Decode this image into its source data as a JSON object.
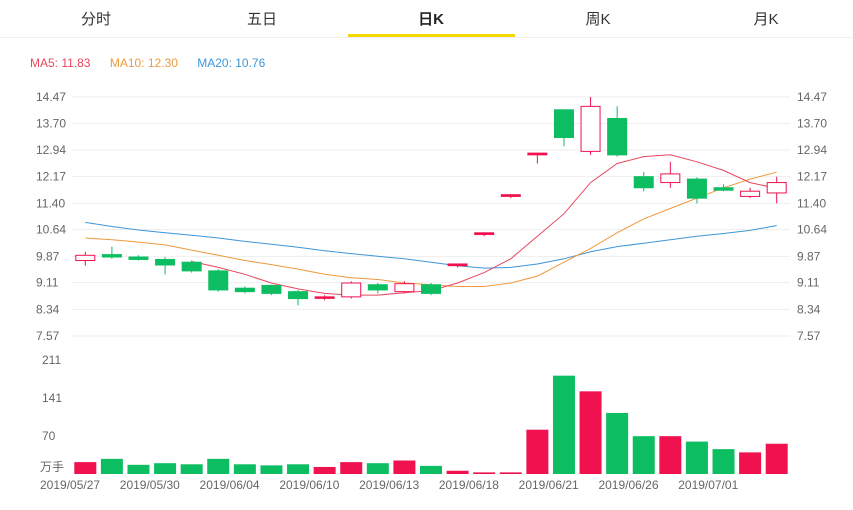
{
  "tabs": [
    {
      "label": "分时"
    },
    {
      "label": "五日"
    },
    {
      "label": "日K"
    },
    {
      "label": "周K"
    },
    {
      "label": "月K"
    }
  ],
  "active_tab": 2,
  "legend": {
    "ma5": "MA5: 11.83",
    "ma10": "MA10: 12.30",
    "ma20": "MA20: 10.76"
  },
  "colors": {
    "up": "#f0124f",
    "down": "#0cbd62",
    "ma5": "#e8475f",
    "ma10": "#ee9a3e",
    "ma20": "#3d96d8",
    "axis_text": "#666666",
    "grid": "#eeeeee",
    "tab_accent": "#f5d800"
  },
  "chart_data": {
    "type": "candlestick",
    "price_axis": {
      "ticks": [
        "14.47",
        "13.70",
        "12.94",
        "12.17",
        "11.40",
        "10.64",
        "9.87",
        "9.11",
        "8.34",
        "7.57"
      ],
      "range": [
        7.57,
        14.47
      ]
    },
    "volume_axis": {
      "ticks": [
        "211",
        "141",
        "70"
      ],
      "unit_label": "万手",
      "range": [
        0,
        211
      ]
    },
    "x_labels": [
      "2019/05/27",
      "2019/05/30",
      "2019/06/04",
      "2019/06/10",
      "2019/06/13",
      "2019/06/18",
      "2019/06/21",
      "2019/06/26",
      "2019/07/01"
    ],
    "x_label_index": [
      0,
      3,
      6,
      9,
      12,
      15,
      18,
      21,
      24
    ],
    "candles": [
      {
        "o": 9.75,
        "h": 10.0,
        "l": 9.6,
        "c": 9.9
      },
      {
        "o": 9.92,
        "h": 10.15,
        "l": 9.8,
        "c": 9.85
      },
      {
        "o": 9.85,
        "h": 9.9,
        "l": 9.75,
        "c": 9.78
      },
      {
        "o": 9.78,
        "h": 9.85,
        "l": 9.35,
        "c": 9.62
      },
      {
        "o": 9.7,
        "h": 9.75,
        "l": 9.4,
        "c": 9.45
      },
      {
        "o": 9.45,
        "h": 9.5,
        "l": 8.85,
        "c": 8.9
      },
      {
        "o": 8.95,
        "h": 9.0,
        "l": 8.8,
        "c": 8.85
      },
      {
        "o": 9.03,
        "h": 9.05,
        "l": 8.75,
        "c": 8.8
      },
      {
        "o": 8.85,
        "h": 8.9,
        "l": 8.45,
        "c": 8.65
      },
      {
        "o": 8.66,
        "h": 8.75,
        "l": 8.6,
        "c": 8.7
      },
      {
        "o": 8.7,
        "h": 9.15,
        "l": 8.65,
        "c": 9.1
      },
      {
        "o": 9.05,
        "h": 9.1,
        "l": 8.8,
        "c": 8.9
      },
      {
        "o": 8.85,
        "h": 9.15,
        "l": 8.8,
        "c": 9.08
      },
      {
        "o": 9.05,
        "h": 9.1,
        "l": 8.75,
        "c": 8.8
      },
      {
        "o": 9.6,
        "h": 9.65,
        "l": 9.55,
        "c": 9.65
      },
      {
        "o": 10.5,
        "h": 10.55,
        "l": 10.45,
        "c": 10.55
      },
      {
        "o": 11.6,
        "h": 11.65,
        "l": 11.55,
        "c": 11.65
      },
      {
        "o": 12.8,
        "h": 12.85,
        "l": 12.55,
        "c": 12.85
      },
      {
        "o": 14.1,
        "h": 14.1,
        "l": 13.05,
        "c": 13.3
      },
      {
        "o": 12.9,
        "h": 14.47,
        "l": 12.8,
        "c": 14.2
      },
      {
        "o": 13.85,
        "h": 14.2,
        "l": 12.75,
        "c": 12.8
      },
      {
        "o": 12.17,
        "h": 12.3,
        "l": 11.75,
        "c": 11.85
      },
      {
        "o": 12.0,
        "h": 12.6,
        "l": 11.85,
        "c": 12.25
      },
      {
        "o": 12.1,
        "h": 12.15,
        "l": 11.4,
        "c": 11.55
      },
      {
        "o": 11.85,
        "h": 11.95,
        "l": 11.75,
        "c": 11.78
      },
      {
        "o": 11.6,
        "h": 11.85,
        "l": 11.55,
        "c": 11.75
      },
      {
        "o": 11.7,
        "h": 12.17,
        "l": 11.4,
        "c": 12.0
      }
    ],
    "volumes": [
      22,
      28,
      17,
      20,
      18,
      28,
      18,
      16,
      18,
      13,
      22,
      20,
      25,
      15,
      6,
      3,
      3,
      82,
      182,
      153,
      113,
      70,
      70,
      60,
      46,
      40,
      56
    ],
    "ma5": [
      null,
      null,
      null,
      null,
      9.72,
      9.55,
      9.35,
      9.1,
      8.93,
      8.8,
      8.75,
      8.75,
      8.82,
      8.88,
      9.1,
      9.4,
      9.8,
      10.45,
      11.1,
      12.0,
      12.55,
      12.75,
      12.8,
      12.6,
      12.35,
      12.0,
      11.83
    ],
    "ma10": [
      10.4,
      10.35,
      10.28,
      10.2,
      10.05,
      9.9,
      9.75,
      9.63,
      9.5,
      9.35,
      9.25,
      9.2,
      9.1,
      9.05,
      9.0,
      9.0,
      9.1,
      9.3,
      9.7,
      10.1,
      10.55,
      10.95,
      11.25,
      11.55,
      11.85,
      12.1,
      12.3
    ],
    "ma20": [
      10.85,
      10.73,
      10.63,
      10.55,
      10.48,
      10.4,
      10.3,
      10.22,
      10.13,
      10.03,
      9.95,
      9.87,
      9.8,
      9.7,
      9.6,
      9.53,
      9.55,
      9.65,
      9.8,
      10.0,
      10.15,
      10.25,
      10.35,
      10.45,
      10.53,
      10.62,
      10.76
    ]
  }
}
